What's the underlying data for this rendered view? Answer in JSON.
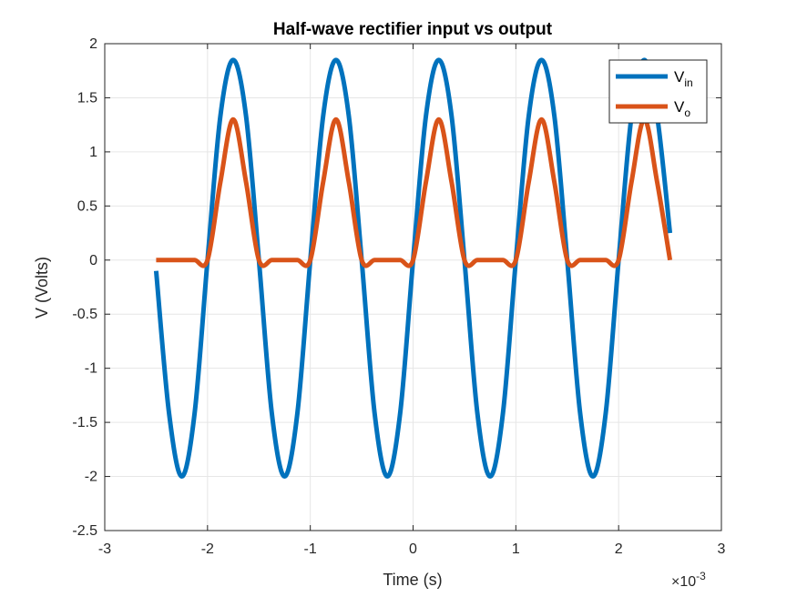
{
  "chart_data": {
    "type": "line",
    "title": "Half-wave rectifier input vs output",
    "xlabel": "Time (s)",
    "ylabel": "V (Volts)",
    "x_exponent_base": "×10",
    "x_exponent_power": "-3",
    "xlim": [
      -3,
      3
    ],
    "ylim": [
      -2.5,
      2
    ],
    "x_ticks": [
      -3,
      -2,
      -1,
      0,
      1,
      2,
      3
    ],
    "x_tick_labels": [
      "-3",
      "-2",
      "-1",
      "0",
      "1",
      "2",
      "3"
    ],
    "y_ticks": [
      -2.5,
      -2,
      -1.5,
      -1,
      -0.5,
      0,
      0.5,
      1,
      1.5,
      2
    ],
    "y_tick_labels": [
      "-2.5",
      "-2",
      "-1.5",
      "-1",
      "-0.5",
      "0",
      "0.5",
      "1",
      "1.5",
      "2"
    ],
    "grid": true,
    "legend_position": "top-right",
    "x_units": "ms (×10^-3 s)",
    "series": [
      {
        "name": "V",
        "subscript": "in",
        "color": "#0072BD",
        "x": [
          -2.5,
          -2.375,
          -2.25,
          -2.125,
          -2.0,
          -1.875,
          -1.75,
          -1.625,
          -1.5,
          -1.375,
          -1.25,
          -1.125,
          -1.0,
          -0.875,
          -0.75,
          -0.625,
          -0.5,
          -0.375,
          -0.25,
          -0.125,
          0.0,
          0.125,
          0.25,
          0.375,
          0.5,
          0.625,
          0.75,
          0.875,
          1.0,
          1.125,
          1.25,
          1.375,
          1.5,
          1.625,
          1.75,
          1.875,
          2.0,
          2.125,
          2.25,
          2.375,
          2.5
        ],
        "values": [
          -0.1,
          -1.41,
          -2.0,
          -1.41,
          0.0,
          1.33,
          1.85,
          1.33,
          0.0,
          -1.41,
          -2.0,
          -1.41,
          0.0,
          1.33,
          1.85,
          1.33,
          0.0,
          -1.41,
          -2.0,
          -1.41,
          0.0,
          1.33,
          1.85,
          1.33,
          0.0,
          -1.41,
          -2.0,
          -1.41,
          0.0,
          1.33,
          1.85,
          1.33,
          0.0,
          -1.41,
          -2.0,
          -1.41,
          0.0,
          1.33,
          1.85,
          1.33,
          0.25
        ]
      },
      {
        "name": "V",
        "subscript": "o",
        "color": "#D95319",
        "x": [
          -2.5,
          -2.375,
          -2.25,
          -2.125,
          -2.0,
          -1.875,
          -1.75,
          -1.625,
          -1.5,
          -1.375,
          -1.25,
          -1.125,
          -1.0,
          -0.875,
          -0.75,
          -0.625,
          -0.5,
          -0.375,
          -0.25,
          -0.125,
          0.0,
          0.125,
          0.25,
          0.375,
          0.5,
          0.625,
          0.75,
          0.875,
          1.0,
          1.125,
          1.25,
          1.375,
          1.5,
          1.625,
          1.75,
          1.875,
          2.0,
          2.125,
          2.25,
          2.375,
          2.5
        ],
        "values": [
          0.0,
          0.0,
          0.0,
          0.0,
          0.0,
          0.72,
          1.3,
          0.72,
          0.0,
          0.0,
          0.0,
          0.0,
          0.0,
          0.72,
          1.3,
          0.72,
          0.0,
          0.0,
          0.0,
          0.0,
          0.0,
          0.72,
          1.3,
          0.72,
          0.0,
          0.0,
          0.0,
          0.0,
          0.0,
          0.72,
          1.3,
          0.72,
          0.0,
          0.0,
          0.0,
          0.0,
          0.0,
          0.72,
          1.3,
          0.72,
          0.0
        ]
      }
    ]
  }
}
